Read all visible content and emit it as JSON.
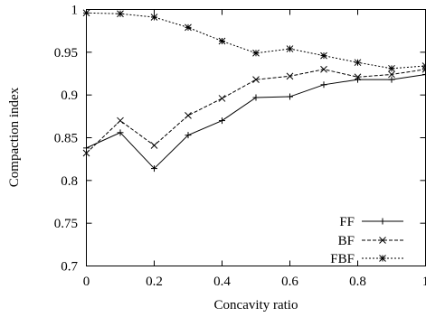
{
  "chart_data": {
    "type": "line",
    "xlabel": "Concavity ratio",
    "ylabel": "Compaction index",
    "xlim": [
      0,
      1
    ],
    "ylim": [
      0.7,
      1
    ],
    "xticks": [
      0,
      0.2,
      0.4,
      0.6,
      0.8,
      1
    ],
    "yticks": [
      0.7,
      0.75,
      0.8,
      0.85,
      0.9,
      0.95,
      1
    ],
    "xtick_labels": [
      "0",
      "0.2",
      "0.4",
      "0.6",
      "0.8",
      "1"
    ],
    "ytick_labels": [
      "0.7",
      "0.75",
      "0.8",
      "0.85",
      "0.9",
      "0.95",
      "1"
    ],
    "grid": false,
    "legend_position": "bottom-right",
    "x": [
      0,
      0.1,
      0.2,
      0.3,
      0.4,
      0.5,
      0.6,
      0.7,
      0.8,
      0.9,
      1.0
    ],
    "series": [
      {
        "name": "FF",
        "style": "solid",
        "marker": "plus",
        "values": [
          0.838,
          0.856,
          0.814,
          0.853,
          0.87,
          0.897,
          0.898,
          0.912,
          0.918,
          0.918,
          0.924
        ]
      },
      {
        "name": "BF",
        "style": "dashed",
        "marker": "cross",
        "values": [
          0.832,
          0.87,
          0.841,
          0.876,
          0.896,
          0.918,
          0.922,
          0.93,
          0.921,
          0.924,
          0.93
        ]
      },
      {
        "name": "FBF",
        "style": "dotted",
        "marker": "star",
        "values": [
          0.996,
          0.995,
          0.991,
          0.979,
          0.963,
          0.949,
          0.954,
          0.946,
          0.938,
          0.931,
          0.934
        ]
      }
    ]
  }
}
